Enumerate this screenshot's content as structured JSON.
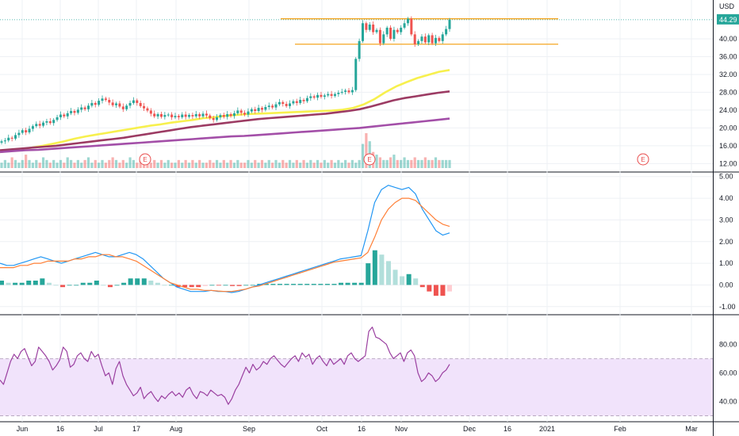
{
  "colors": {
    "up": "#26a69a",
    "down": "#ef5350",
    "ma_fast": "#f7f04e",
    "ma_mid": "#9c3b63",
    "ma_long": "#a34fa8",
    "level": "#f5a623",
    "macd": "#2196f3",
    "signal": "#ff7f36",
    "rsi": "#9a3fa0",
    "rsi_band": "#f1e3fb",
    "last_price_bg": "#26a69a",
    "earnings": "#e84b4b"
  },
  "chart_data": [
    {
      "type": "candlestick",
      "currency": "USD",
      "x_ticks": [
        "Jun",
        "16",
        "Jul",
        "17",
        "Aug",
        "Sep",
        "Oct",
        "16",
        "Nov",
        "Dec",
        "16",
        "2021",
        "Feb",
        "Mar"
      ],
      "y_ticks": [
        "12.00",
        "16.00",
        "20.00",
        "24.00",
        "28.00",
        "32.00",
        "36.00",
        "40.00",
        "44.29"
      ],
      "ylim": [
        11,
        48
      ],
      "last_price": "44.29",
      "closes": [
        17.0,
        17.2,
        17.8,
        17.6,
        18.4,
        18.9,
        19.5,
        19.0,
        19.8,
        20.4,
        20.9,
        20.5,
        21.2,
        21.5,
        21.1,
        21.8,
        22.4,
        23.0,
        22.6,
        23.3,
        23.8,
        23.4,
        24.1,
        24.6,
        24.2,
        25.0,
        25.6,
        25.2,
        26.1,
        26.6,
        26.3,
        25.7,
        25.1,
        25.5,
        24.8,
        24.2,
        25.0,
        25.6,
        26.2,
        25.6,
        24.9,
        24.4,
        23.9,
        23.2,
        22.6,
        23.1,
        22.5,
        22.9,
        23.0,
        22.4,
        22.7,
        22.4,
        23.0,
        22.5,
        22.9,
        22.6,
        23.1,
        22.6,
        23.2,
        22.8,
        22.2,
        21.8,
        22.4,
        22.9,
        22.5,
        23.1,
        22.7,
        23.3,
        23.9,
        23.4,
        23.0,
        23.7,
        24.2,
        23.8,
        24.5,
        24.1,
        24.7,
        25.0,
        24.6,
        25.3,
        25.8,
        25.4,
        24.9,
        25.5,
        26.0,
        25.6,
        26.3,
        26.0,
        26.7,
        27.1,
        26.8,
        27.4,
        27.0,
        27.3,
        27.6,
        27.2,
        27.6,
        27.9,
        28.1,
        28.4,
        28.0,
        28.5,
        35.5,
        39.5,
        43.5,
        42.0,
        43.2,
        41.5,
        42.0,
        39.0,
        41.0,
        42.5,
        40.0,
        42.0,
        41.5,
        42.5,
        43.5,
        44.5,
        41.0,
        38.8,
        39.5,
        40.5,
        39.2,
        40.8,
        39.0,
        40.2,
        39.5,
        41.0,
        42.2,
        44.29
      ],
      "series": [
        {
          "name": "",
          "values": [
            14.6,
            14.9,
            15.2,
            15.6,
            16.0,
            16.5,
            17.0,
            17.6,
            18.1,
            18.5,
            18.9,
            19.3,
            19.7,
            20.1,
            20.5,
            20.8,
            21.2,
            21.5,
            21.8,
            22.2,
            22.4,
            22.7,
            22.9,
            23.1,
            23.2,
            23.3,
            23.4,
            23.5,
            23.6,
            23.7,
            23.8,
            23.9,
            24.1,
            24.5,
            25.3,
            26.5,
            28.0,
            29.3,
            30.3,
            31.2,
            31.9,
            32.6,
            33.0
          ]
        },
        {
          "name": "",
          "values": [
            15.0,
            15.2,
            15.4,
            15.6,
            15.8,
            16.0,
            16.3,
            16.6,
            16.9,
            17.2,
            17.5,
            17.8,
            18.2,
            18.6,
            19.0,
            19.4,
            19.8,
            20.2,
            20.5,
            20.8,
            21.1,
            21.4,
            21.7,
            22.0,
            22.2,
            22.4,
            22.6,
            22.8,
            23.0,
            23.2,
            23.5,
            23.8,
            24.2,
            24.8,
            25.5,
            26.2,
            26.7,
            27.1,
            27.5,
            27.9,
            28.2
          ]
        },
        {
          "name": "",
          "values": [
            14.6,
            14.8,
            15.0,
            15.1,
            15.3,
            15.5,
            15.7,
            15.9,
            16.1,
            16.3,
            16.5,
            16.7,
            16.9,
            17.1,
            17.3,
            17.5,
            17.7,
            17.9,
            18.1,
            18.2,
            18.4,
            18.6,
            18.8,
            19.0,
            19.2,
            19.4,
            19.6,
            19.8,
            20.0,
            20.3,
            20.6,
            20.9,
            21.2,
            21.5,
            21.8,
            22.1
          ]
        }
      ],
      "levels": [
        44.5,
        38.8
      ],
      "volume": [
        2,
        3,
        2,
        4,
        3,
        2,
        3,
        5,
        3,
        2,
        3,
        2,
        4,
        3,
        2,
        3,
        2,
        3,
        2,
        4,
        3,
        2,
        3,
        2,
        3,
        4,
        2,
        3,
        2,
        3,
        2,
        3,
        4,
        3,
        2,
        3,
        2,
        4,
        3,
        2,
        3,
        2,
        3,
        2,
        3,
        2,
        3,
        2,
        3,
        2,
        2,
        3,
        2,
        3,
        2,
        3,
        2,
        3,
        2,
        2,
        3,
        2,
        3,
        2,
        3,
        2,
        3,
        2,
        3,
        2,
        2,
        3,
        2,
        3,
        2,
        3,
        2,
        3,
        2,
        3,
        2,
        3,
        2,
        3,
        2,
        3,
        2,
        3,
        2,
        3,
        2,
        3,
        2,
        3,
        2,
        3,
        2,
        3,
        2,
        3,
        2,
        3,
        2,
        3,
        9,
        13,
        10,
        6,
        5,
        4,
        3,
        3,
        4,
        5,
        3,
        3,
        4,
        3,
        3,
        4,
        3,
        3,
        4,
        3,
        3,
        4,
        3,
        3,
        3,
        3
      ],
      "earnings_marker": "E"
    },
    {
      "type": "line",
      "y_ticks": [
        "-1.00",
        "0.00",
        "1.00",
        "2.00",
        "3.00",
        "4.00",
        "5.00"
      ],
      "ylim": [
        -1.3,
        5.1
      ],
      "series": [
        {
          "name": "",
          "values": [
            1.0,
            0.9,
            0.9,
            1.0,
            1.1,
            1.2,
            1.3,
            1.2,
            1.1,
            1.0,
            1.1,
            1.2,
            1.3,
            1.4,
            1.5,
            1.4,
            1.3,
            1.3,
            1.4,
            1.5,
            1.4,
            1.2,
            0.9,
            0.6,
            0.3,
            0.1,
            -0.1,
            -0.2,
            -0.3,
            -0.3,
            -0.3,
            -0.25,
            -0.3,
            -0.3,
            -0.35,
            -0.3,
            -0.2,
            -0.1,
            0.0,
            0.1,
            0.2,
            0.3,
            0.4,
            0.5,
            0.6,
            0.7,
            0.8,
            0.9,
            1.0,
            1.1,
            1.2,
            1.25,
            1.3,
            1.35,
            2.5,
            3.8,
            4.4,
            4.6,
            4.5,
            4.4,
            4.5,
            4.2,
            3.5,
            3.0,
            2.5,
            2.3,
            2.4
          ]
        },
        {
          "name": "",
          "values": [
            0.8,
            0.8,
            0.8,
            0.9,
            0.9,
            1.0,
            1.0,
            1.1,
            1.1,
            1.1,
            1.1,
            1.2,
            1.2,
            1.3,
            1.3,
            1.4,
            1.4,
            1.3,
            1.3,
            1.2,
            1.1,
            0.9,
            0.7,
            0.5,
            0.3,
            0.1,
            0.0,
            -0.1,
            -0.2,
            -0.2,
            -0.25,
            -0.25,
            -0.28,
            -0.3,
            -0.3,
            -0.25,
            -0.2,
            -0.1,
            -0.05,
            0.05,
            0.15,
            0.25,
            0.35,
            0.45,
            0.55,
            0.65,
            0.75,
            0.85,
            0.95,
            1.05,
            1.1,
            1.15,
            1.2,
            1.25,
            1.5,
            2.2,
            3.0,
            3.5,
            3.8,
            4.0,
            4.0,
            3.9,
            3.6,
            3.3,
            3.0,
            2.8,
            2.7
          ]
        }
      ],
      "histogram": [
        0.2,
        0.1,
        0.1,
        0.1,
        0.2,
        0.2,
        0.3,
        0.1,
        0.0,
        -0.1,
        0.0,
        0.0,
        0.1,
        0.1,
        0.2,
        0.0,
        -0.1,
        0.0,
        0.1,
        0.3,
        0.3,
        0.3,
        0.2,
        0.1,
        0.0,
        0.0,
        -0.1,
        -0.1,
        -0.1,
        -0.1,
        -0.05,
        0.0,
        -0.02,
        0.0,
        -0.05,
        -0.05,
        0.0,
        0.0,
        0.05,
        0.05,
        0.05,
        0.05,
        0.05,
        0.05,
        0.05,
        0.05,
        0.05,
        0.05,
        0.05,
        0.05,
        0.1,
        0.1,
        0.1,
        0.1,
        1.0,
        1.6,
        1.4,
        1.1,
        0.7,
        0.4,
        0.5,
        0.3,
        -0.1,
        -0.3,
        -0.5,
        -0.5,
        -0.3
      ]
    },
    {
      "type": "line",
      "y_ticks": [
        "40.00",
        "60.00",
        "80.00"
      ],
      "ylim": [
        27,
        99
      ],
      "band": [
        30,
        70
      ],
      "series": [
        {
          "name": "",
          "values": [
            55,
            52,
            60,
            68,
            73,
            70,
            75,
            77,
            71,
            65,
            68,
            78,
            75,
            72,
            68,
            62,
            65,
            69,
            78,
            75,
            64,
            66,
            72,
            74,
            70,
            68,
            75,
            71,
            73,
            65,
            58,
            60,
            52,
            63,
            68,
            58,
            52,
            48,
            44,
            46,
            50,
            42,
            45,
            47,
            43,
            40,
            44,
            42,
            45,
            47,
            44,
            46,
            43,
            48,
            50,
            45,
            42,
            47,
            46,
            44,
            48,
            46,
            44,
            45,
            43,
            38,
            42,
            48,
            52,
            58,
            64,
            60,
            66,
            62,
            64,
            68,
            66,
            70,
            72,
            69,
            66,
            64,
            67,
            70,
            72,
            68,
            74,
            71,
            73,
            66,
            70,
            72,
            68,
            65,
            70,
            66,
            68,
            70,
            66,
            72,
            74,
            70,
            68,
            70,
            72,
            89,
            92,
            85,
            84,
            82,
            80,
            74,
            70,
            72,
            74,
            68,
            74,
            76,
            72,
            60,
            54,
            56,
            60,
            58,
            54,
            56,
            60,
            62,
            66
          ]
        }
      ]
    }
  ]
}
